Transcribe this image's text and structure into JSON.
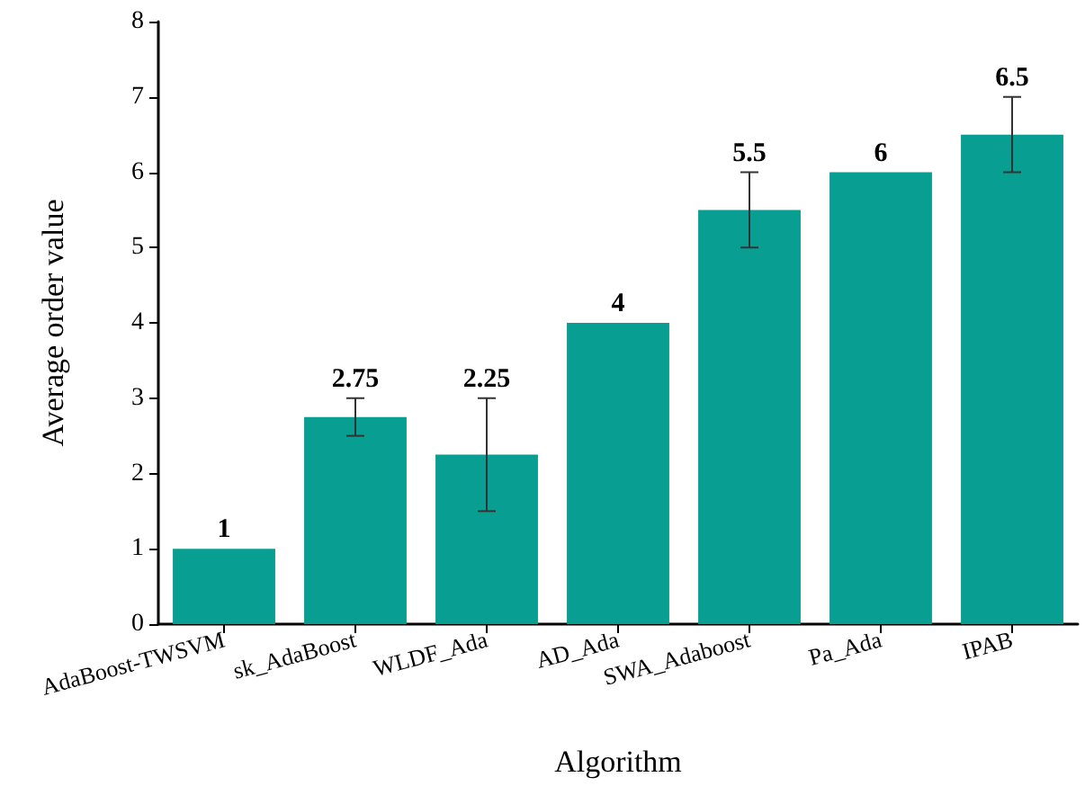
{
  "chart_data": {
    "type": "bar",
    "xlabel": "Algorithm",
    "ylabel": "Average order value",
    "categories": [
      "AdaBoost-TWSVM",
      "sk_AdaBoost",
      "WLDF_Ada",
      "AD_Ada",
      "SWA_Adaboost",
      "Pa_Ada",
      "IPAB"
    ],
    "values": [
      1,
      2.75,
      2.25,
      4,
      5.5,
      6,
      6.5
    ],
    "color": "#089e92",
    "errors": [
      null,
      [
        2.5,
        3
      ],
      [
        1.5,
        3
      ],
      null,
      [
        5,
        6
      ],
      null,
      [
        6,
        7
      ]
    ],
    "ylim": [
      0,
      8
    ],
    "yticks": [
      0,
      1,
      2,
      3,
      4,
      5,
      6,
      7,
      8
    ],
    "grid": false,
    "data_labels": true
  }
}
